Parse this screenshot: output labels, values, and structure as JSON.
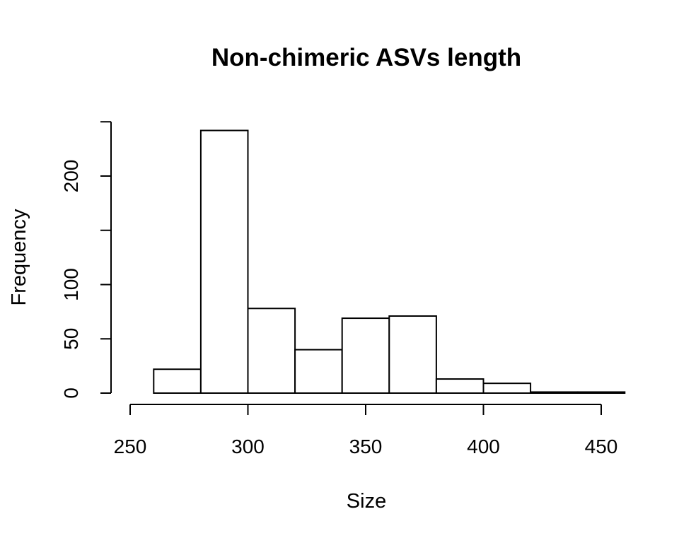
{
  "chart_data": {
    "type": "bar",
    "subtype": "histogram",
    "title": "Non-chimeric ASVs length",
    "xlabel": "Size",
    "ylabel": "Frequency",
    "xlim": [
      250,
      460
    ],
    "ylim": [
      0,
      250
    ],
    "x_ticks": [
      250,
      300,
      350,
      400,
      450
    ],
    "y_ticks": [
      0,
      50,
      100,
      150,
      200,
      250
    ],
    "y_tick_labels": [
      "0",
      "50",
      "100",
      "",
      "200",
      ""
    ],
    "bins": [
      {
        "start": 260,
        "end": 280,
        "count": 22
      },
      {
        "start": 280,
        "end": 300,
        "count": 242
      },
      {
        "start": 300,
        "end": 320,
        "count": 78
      },
      {
        "start": 320,
        "end": 340,
        "count": 40
      },
      {
        "start": 340,
        "end": 360,
        "count": 69
      },
      {
        "start": 360,
        "end": 380,
        "count": 71
      },
      {
        "start": 380,
        "end": 400,
        "count": 13
      },
      {
        "start": 400,
        "end": 420,
        "count": 9
      },
      {
        "start": 420,
        "end": 440,
        "count": 1
      },
      {
        "start": 440,
        "end": 460,
        "count": 1
      }
    ],
    "grid": false,
    "legend": "none",
    "bar_fill": "#ffffff",
    "bar_stroke": "#000000"
  }
}
